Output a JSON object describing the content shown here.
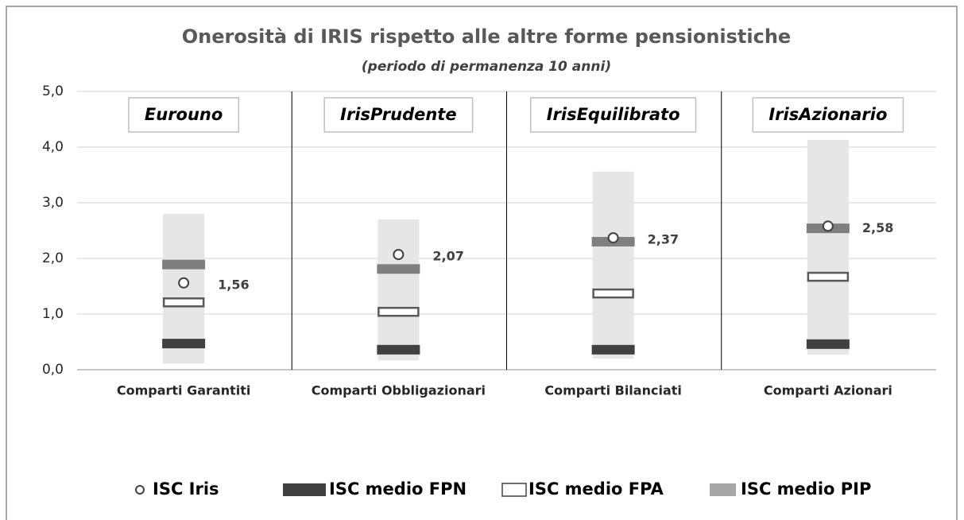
{
  "chart_data": {
    "type": "range-marker",
    "title": "Onerosità di IRIS rispetto alle altre forme pensionistiche",
    "subtitle": "(periodo di permanenza 10 anni)",
    "categories": [
      "Comparti Garantiti",
      "Comparti Obbligazionari",
      "Comparti Bilanciati",
      "Comparti Azionari"
    ],
    "panel_labels": [
      "Eurouno",
      "IrisPrudente",
      "IrisEquilibrato",
      "IrisAzionario"
    ],
    "range_color": "#e6e6e6",
    "range_low": [
      0.11,
      0.17,
      0.2,
      0.27
    ],
    "range_high": [
      2.8,
      2.7,
      3.56,
      4.13
    ],
    "series": [
      {
        "name": "ISC Iris",
        "marker": "circle",
        "color": "#ffffff",
        "values": [
          1.56,
          2.07,
          2.37,
          2.58
        ],
        "value_labels": [
          "1,56",
          "2,07",
          "2,37",
          "2,58"
        ]
      },
      {
        "name": "ISC medio FPN",
        "marker": "bar",
        "color": "#404040",
        "values": [
          0.47,
          0.36,
          0.36,
          0.46
        ]
      },
      {
        "name": "ISC medio FPA",
        "marker": "hollow-bar",
        "color": "#ffffff",
        "values": [
          1.21,
          1.04,
          1.37,
          1.67
        ]
      },
      {
        "name": "ISC medio PIP",
        "marker": "bar",
        "color": "#7f7f7f",
        "values": [
          1.89,
          1.81,
          2.3,
          2.54
        ]
      }
    ],
    "ylim": [
      0,
      5
    ],
    "yticks": [
      {
        "value": 0,
        "label": "0,0"
      },
      {
        "value": 1,
        "label": "1,0"
      },
      {
        "value": 2,
        "label": "2,0"
      },
      {
        "value": 3,
        "label": "3,0"
      },
      {
        "value": 4,
        "label": "4,0"
      },
      {
        "value": 5,
        "label": "5,0"
      }
    ],
    "grid": true
  }
}
